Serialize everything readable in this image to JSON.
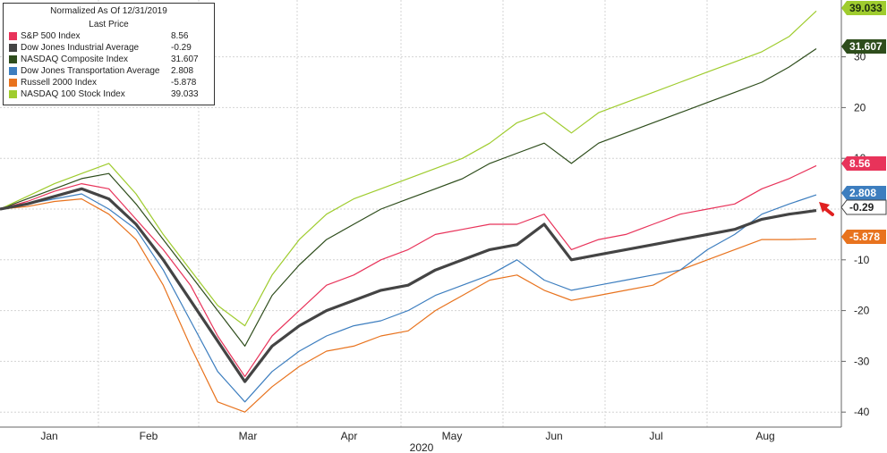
{
  "legend": {
    "title": "Normalized As Of 12/31/2019",
    "subtitle": "Last Price"
  },
  "chart_data": {
    "type": "line",
    "xlabel": "2020",
    "ylabel": "",
    "ylim": [
      -42,
      42
    ],
    "y_ticks": [
      30,
      20,
      10,
      -10,
      -20,
      -30,
      -40
    ],
    "x_ticks": [
      "Jan",
      "Feb",
      "Mar",
      "Apr",
      "May",
      "Jun",
      "Jul",
      "Aug"
    ],
    "grid": true,
    "legend_position": "top-left",
    "series": [
      {
        "name": "S&P 500 Index",
        "value_label": "8.56",
        "last": 8.56,
        "color": "#e8335a",
        "values": [
          0,
          1.5,
          3.5,
          5,
          4,
          -2,
          -8,
          -15,
          -25,
          -33,
          -25,
          -20,
          -15,
          -13,
          -10,
          -8,
          -5,
          -4,
          -3,
          -3,
          -1,
          -8,
          -6,
          -5,
          -3,
          -1,
          0,
          1,
          4,
          6,
          8.56
        ]
      },
      {
        "name": "Dow Jones Industrial Average",
        "value_label": "-0.29",
        "last": -0.29,
        "color": "#444444",
        "values": [
          0,
          1,
          2.5,
          4,
          2,
          -3,
          -10,
          -18,
          -26,
          -34,
          -27,
          -23,
          -20,
          -18,
          -16,
          -15,
          -12,
          -10,
          -8,
          -7,
          -3,
          -10,
          -9,
          -8,
          -7,
          -6,
          -5,
          -4,
          -2,
          -1,
          -0.29
        ]
      },
      {
        "name": "NASDAQ Composite Index",
        "value_label": "31.607",
        "last": 31.607,
        "color": "#2e4d1c",
        "values": [
          0,
          2,
          4,
          6,
          7,
          1,
          -6,
          -13,
          -20,
          -27,
          -17,
          -11,
          -6,
          -3,
          0,
          2,
          4,
          6,
          9,
          11,
          13,
          9,
          13,
          15,
          17,
          19,
          21,
          23,
          25,
          28,
          31.607
        ]
      },
      {
        "name": "Dow Jones Transportation Average",
        "value_label": "2.808",
        "last": 2.808,
        "color": "#3d7ebf",
        "values": [
          0,
          1,
          2,
          3,
          0,
          -4,
          -12,
          -22,
          -32,
          -38,
          -32,
          -28,
          -25,
          -23,
          -22,
          -20,
          -17,
          -15,
          -13,
          -10,
          -14,
          -16,
          -15,
          -14,
          -13,
          -12,
          -8,
          -5,
          -1,
          1,
          2.808
        ]
      },
      {
        "name": "Russell 2000 Index",
        "value_label": "-5.878",
        "last": -5.878,
        "color": "#e8731e",
        "values": [
          0,
          0.5,
          1.5,
          2,
          -1,
          -6,
          -15,
          -27,
          -38,
          -40,
          -35,
          -31,
          -28,
          -27,
          -25,
          -24,
          -20,
          -17,
          -14,
          -13,
          -16,
          -18,
          -17,
          -16,
          -15,
          -12,
          -10,
          -8,
          -6,
          -6,
          -5.878
        ]
      },
      {
        "name": "NASDAQ 100 Stock Index",
        "value_label": "39.033",
        "last": 39.033,
        "color": "#9fcc2e",
        "values": [
          0,
          2.5,
          5,
          7,
          9,
          3,
          -5,
          -12,
          -19,
          -23,
          -13,
          -6,
          -1,
          2,
          4,
          6,
          8,
          10,
          13,
          17,
          19,
          15,
          19,
          21,
          23,
          25,
          27,
          29,
          31,
          34,
          39.033
        ]
      }
    ]
  }
}
